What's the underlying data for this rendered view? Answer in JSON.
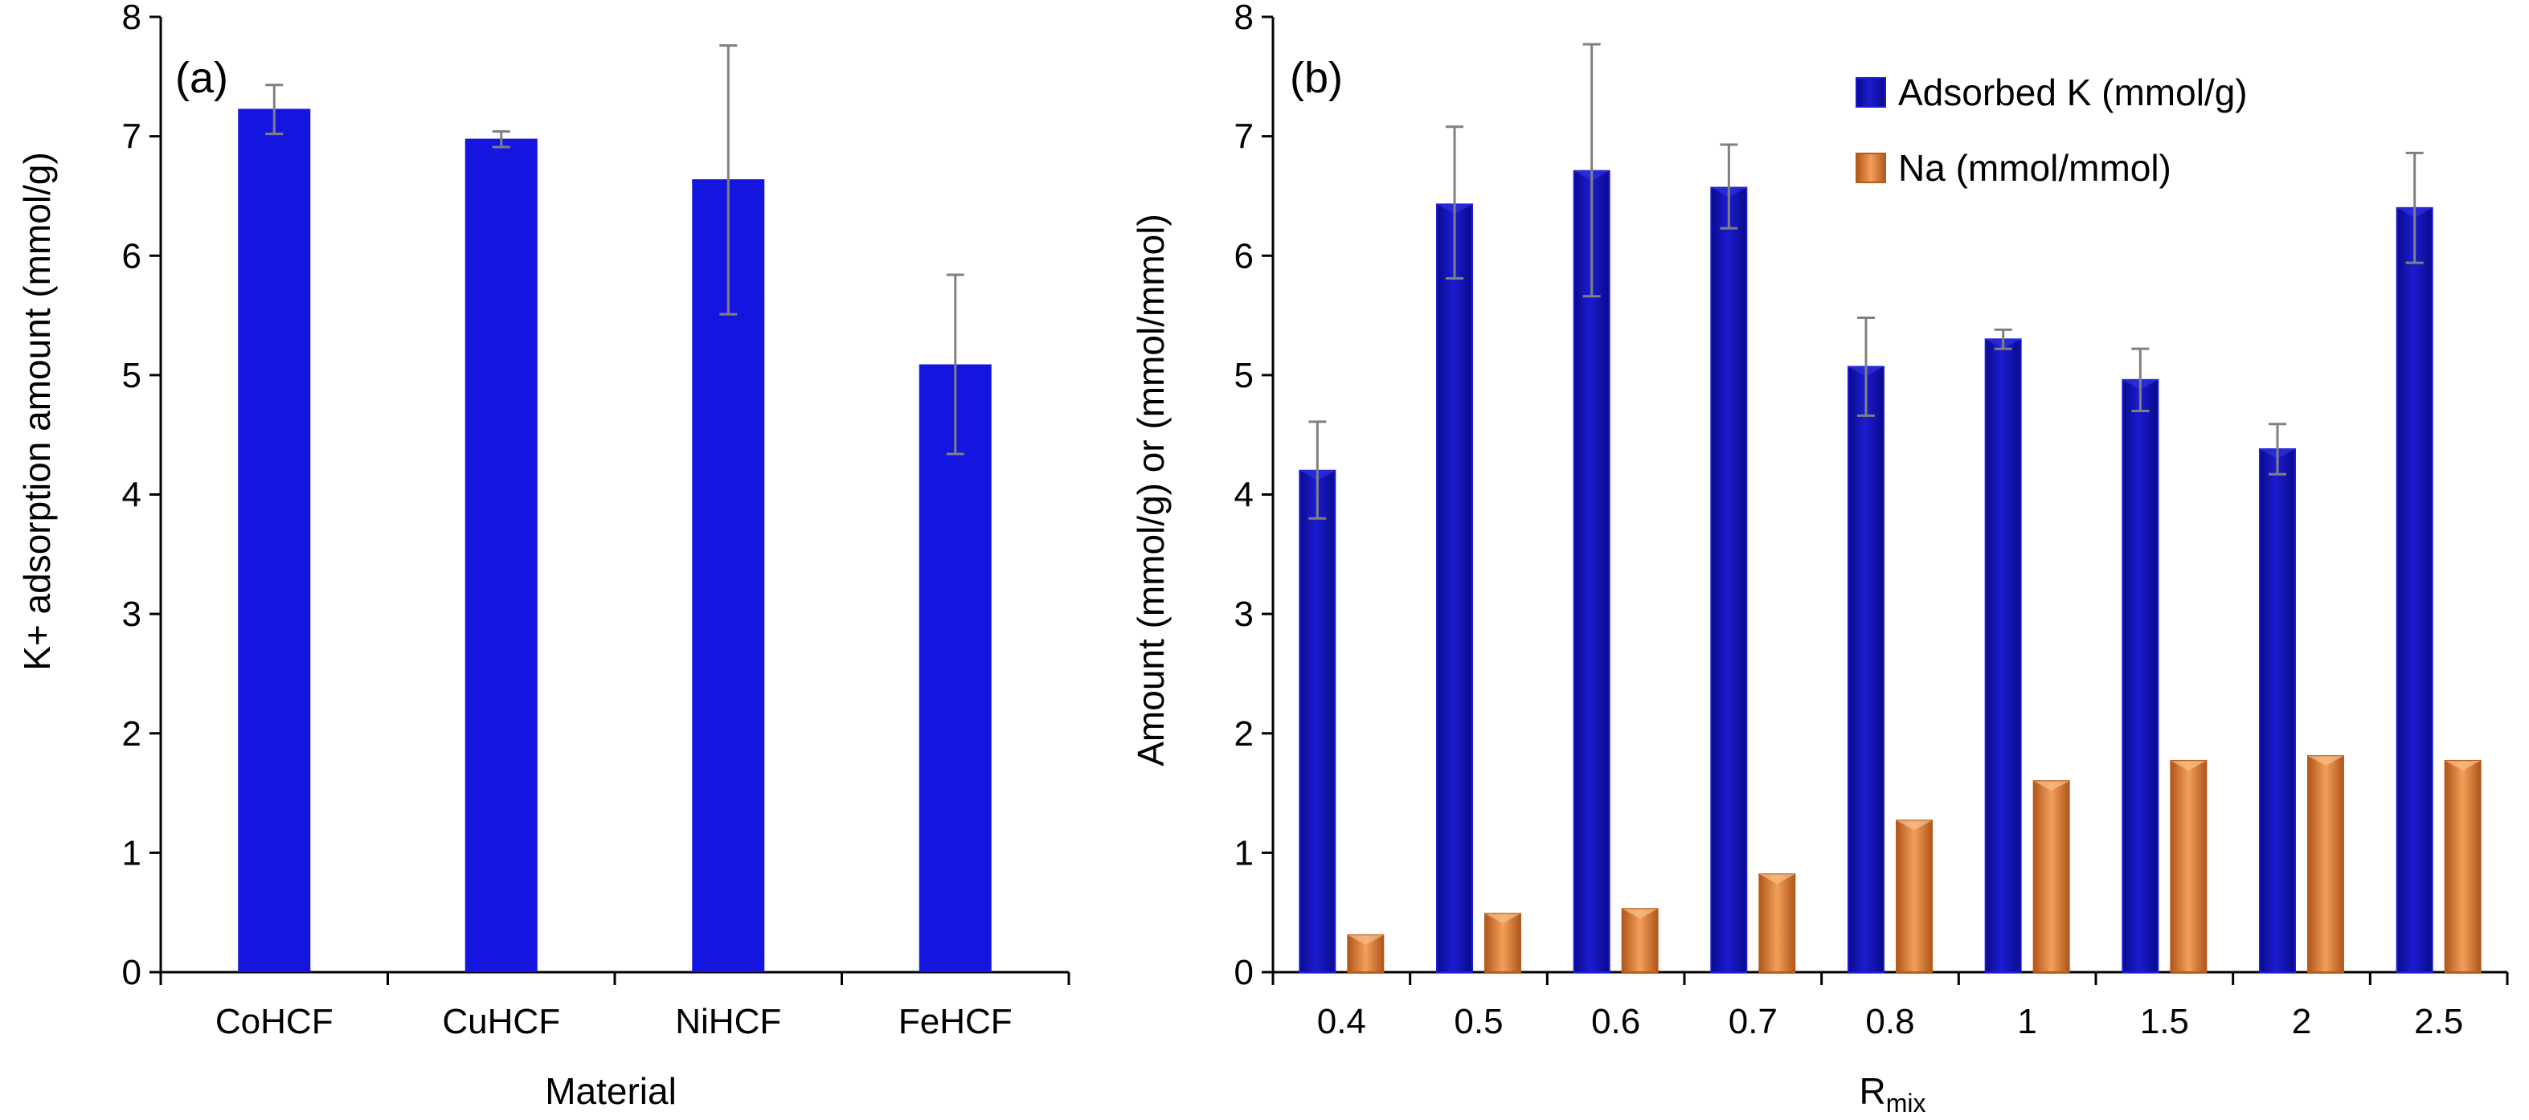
{
  "chart_data": [
    {
      "panel_label": "(a)",
      "type": "bar",
      "categories": [
        "CoHCF",
        "CuHCF",
        "NiHCF",
        "FeHCF"
      ],
      "values": [
        7.23,
        6.98,
        6.64,
        5.09
      ],
      "error_high": [
        7.43,
        7.04,
        7.76,
        5.84
      ],
      "error_low": [
        7.02,
        6.91,
        5.51,
        4.34
      ],
      "xlabel": "Material",
      "ylabel": "K+ adsorption amount  (mmol/g)",
      "ylim": [
        0,
        8
      ],
      "yticks": [
        "0",
        "1",
        "2",
        "3",
        "4",
        "5",
        "6",
        "7",
        "8"
      ],
      "colors": {
        "bar": "#1515e0",
        "error": "#808080"
      }
    },
    {
      "panel_label": "(b)",
      "type": "bar",
      "categories": [
        "0.4",
        "0.5",
        "0.6",
        "0.7",
        "0.8",
        "1",
        "1.5",
        "2",
        "2.5"
      ],
      "series": [
        {
          "name": "Adsorbed K (mmol/g)",
          "values": [
            4.2,
            6.43,
            6.71,
            6.57,
            5.07,
            5.3,
            4.96,
            4.38,
            6.4
          ],
          "error_high": [
            4.61,
            7.08,
            7.77,
            6.93,
            5.48,
            5.38,
            5.22,
            4.59,
            6.86
          ],
          "error_low": [
            3.8,
            5.81,
            5.66,
            6.23,
            4.66,
            5.22,
            4.7,
            4.17,
            5.94
          ]
        },
        {
          "name": "Na (mmol/mmol)",
          "values": [
            0.31,
            0.49,
            0.53,
            0.82,
            1.27,
            1.6,
            1.77,
            1.81,
            1.77
          ]
        }
      ],
      "xlabel": "R",
      "xlabel_sub": "mix",
      "ylabel": "Amount  (mmol/g)  or  (mmol/mmol)",
      "ylim": [
        0,
        8
      ],
      "yticks": [
        "0",
        "1",
        "2",
        "3",
        "4",
        "5",
        "6",
        "7",
        "8"
      ],
      "colors": {
        "k_bar": "#0c0ca8",
        "k_edge": "#1c1cd8",
        "na_bar": "#e8863a",
        "na_edge": "#b85a18",
        "error": "#808080"
      }
    }
  ]
}
